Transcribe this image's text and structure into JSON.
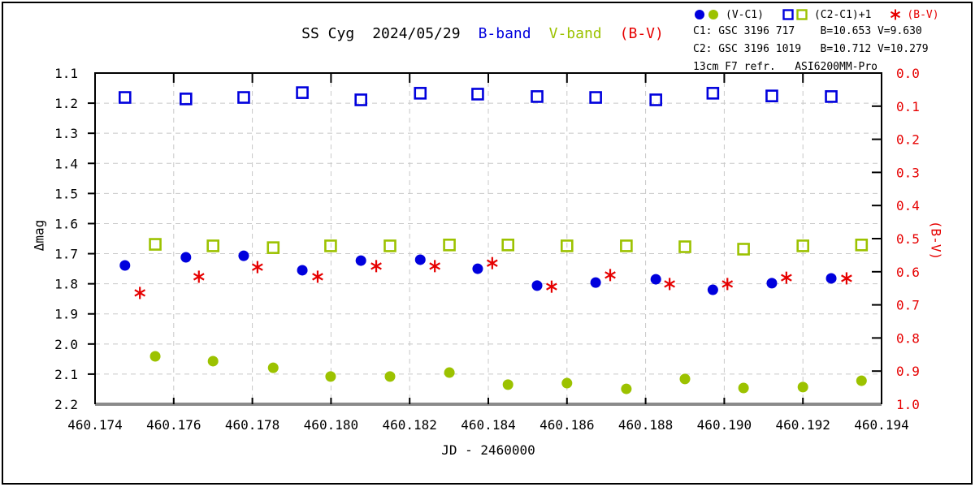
{
  "title": {
    "target": "SS Cyg",
    "date": "2024/05/29",
    "b_band": "B-band",
    "v_band": "V-band",
    "bv": "(B-V)"
  },
  "legend": {
    "vc1_label": "(V-C1)",
    "c2c1_label": "(C2-C1)+1",
    "bv_label": "(B-V)"
  },
  "info": {
    "c1_line": "C1: GSC 3196 717    B=10.653 V=9.630",
    "c2_line": "C2: GSC 3196 1019   B=10.712 V=10.279",
    "equipment_line": "13cm F7 refr.   ASI6200MM-Pro"
  },
  "colors": {
    "blue": "#0000dd",
    "olive": "#9cc200",
    "red": "#e60000",
    "grid": "#c8c8c8",
    "frame": "#000000",
    "frame_bottom": "#8a8a8a"
  },
  "chart_data": {
    "type": "scatter",
    "title": "SS Cyg 2024/05/29 B-band V-band (B-V)",
    "xlabel": "JD - 2460000",
    "ylabel_left": "Δmag",
    "ylabel_right": "(B-V)",
    "xlim": [
      460.174,
      460.194
    ],
    "ylim_left": [
      1.1,
      2.2
    ],
    "ylim_right": [
      0.0,
      1.0
    ],
    "y_left_inverted_display": "top=1.1 bottom=2.2",
    "grid": "dashed gray at every tick, both axes",
    "legend_position": "top-right, outside plot",
    "x_ticks": [
      "460.174",
      "460.176",
      "460.178",
      "460.180",
      "460.182",
      "460.184",
      "460.186",
      "460.188",
      "460.190",
      "460.192",
      "460.194"
    ],
    "y_left_ticks": [
      "1.1",
      "1.2",
      "1.3",
      "1.4",
      "1.5",
      "1.6",
      "1.7",
      "1.8",
      "1.9",
      "2.0",
      "2.1",
      "2.2"
    ],
    "y_right_ticks": [
      "0.0",
      "0.1",
      "0.2",
      "0.3",
      "0.4",
      "0.5",
      "0.6",
      "0.7",
      "0.8",
      "0.9",
      "1.0"
    ],
    "series": [
      {
        "name": "B-band (V-C1)",
        "marker": "circle-filled",
        "color": "#0000dd",
        "axis": "left",
        "x": [
          460.17476,
          460.17631,
          460.17778,
          460.17927,
          460.18076,
          460.18227,
          460.18373,
          460.18524,
          460.18673,
          460.18826,
          460.18971,
          460.19121,
          460.19272
        ],
        "y": [
          1.739,
          1.712,
          1.707,
          1.755,
          1.723,
          1.72,
          1.75,
          1.806,
          1.796,
          1.785,
          1.82,
          1.798,
          1.782
        ]
      },
      {
        "name": "V-band (V-C1)",
        "marker": "circle-filled",
        "color": "#9cc200",
        "axis": "left",
        "x": [
          460.17553,
          460.177,
          460.17853,
          460.17999,
          460.1815,
          460.18301,
          460.1845,
          460.186,
          460.18751,
          460.189,
          460.19049,
          460.192,
          460.19349
        ],
        "y": [
          2.041,
          2.057,
          2.079,
          2.108,
          2.108,
          2.095,
          2.135,
          2.13,
          2.149,
          2.116,
          2.146,
          2.143,
          2.122
        ]
      },
      {
        "name": "B-band (C2-C1)+1",
        "marker": "square-open",
        "color": "#0000dd",
        "axis": "left",
        "x": [
          460.17476,
          460.17631,
          460.17778,
          460.17927,
          460.18076,
          460.18227,
          460.18373,
          460.18524,
          460.18673,
          460.18826,
          460.18971,
          460.19121,
          460.19272
        ],
        "y": [
          1.181,
          1.186,
          1.181,
          1.165,
          1.189,
          1.167,
          1.17,
          1.178,
          1.181,
          1.189,
          1.167,
          1.176,
          1.178
        ]
      },
      {
        "name": "V-band (C2-C1)+1",
        "marker": "square-open",
        "color": "#9cc200",
        "axis": "left",
        "x": [
          460.17553,
          460.177,
          460.17853,
          460.17999,
          460.1815,
          460.18301,
          460.1845,
          460.186,
          460.18751,
          460.189,
          460.19049,
          460.192,
          460.19349
        ],
        "y": [
          1.669,
          1.674,
          1.68,
          1.674,
          1.674,
          1.671,
          1.671,
          1.674,
          1.674,
          1.677,
          1.685,
          1.674,
          1.671
        ]
      },
      {
        "name": "(B-V)",
        "marker": "asterisk",
        "color": "#e60000",
        "axis": "right",
        "x": [
          460.17514,
          460.17664,
          460.17813,
          460.17966,
          460.18115,
          460.18264,
          460.1841,
          460.18561,
          460.1871,
          460.18861,
          460.19008,
          460.19158,
          460.19311
        ],
        "y": [
          0.664,
          0.615,
          0.586,
          0.615,
          0.583,
          0.583,
          0.574,
          0.645,
          0.61,
          0.637,
          0.637,
          0.618,
          0.62
        ]
      }
    ]
  }
}
